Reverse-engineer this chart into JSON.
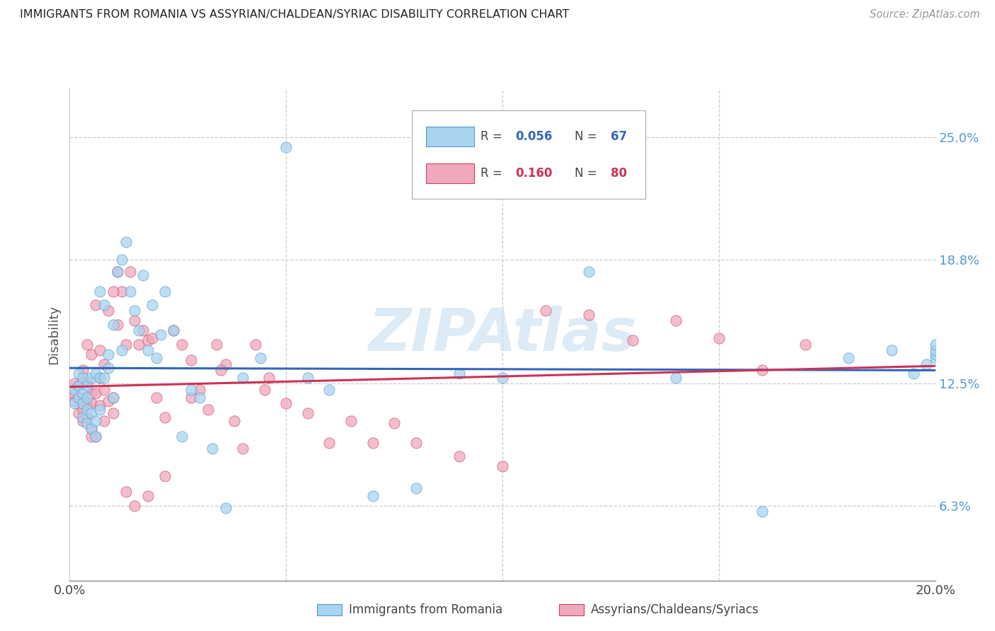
{
  "title": "IMMIGRANTS FROM ROMANIA VS ASSYRIAN/CHALDEAN/SYRIAC DISABILITY CORRELATION CHART",
  "source": "Source: ZipAtlas.com",
  "ylabel": "Disability",
  "ytick_labels": [
    "6.3%",
    "12.5%",
    "18.8%",
    "25.0%"
  ],
  "ytick_values": [
    0.063,
    0.125,
    0.188,
    0.25
  ],
  "xlim": [
    0.0,
    0.2
  ],
  "ylim": [
    0.025,
    0.275
  ],
  "color_blue": "#a8d4f0",
  "color_pink": "#f0a8bc",
  "color_blue_dark": "#5599cc",
  "color_pink_dark": "#cc4466",
  "color_line_blue": "#3366bb",
  "color_line_pink": "#cc3355",
  "watermark": "ZIPAtlas",
  "legend_label_blue": "Immigrants from Romania",
  "legend_label_pink": "Assyrians/Chaldeans/Syriacs",
  "blue_scatter_x": [
    0.001,
    0.001,
    0.002,
    0.002,
    0.002,
    0.003,
    0.003,
    0.003,
    0.003,
    0.004,
    0.004,
    0.004,
    0.004,
    0.005,
    0.005,
    0.005,
    0.006,
    0.006,
    0.006,
    0.007,
    0.007,
    0.007,
    0.008,
    0.008,
    0.009,
    0.009,
    0.01,
    0.01,
    0.011,
    0.012,
    0.012,
    0.013,
    0.014,
    0.015,
    0.016,
    0.017,
    0.018,
    0.019,
    0.02,
    0.021,
    0.022,
    0.024,
    0.026,
    0.028,
    0.03,
    0.033,
    0.036,
    0.04,
    0.044,
    0.05,
    0.055,
    0.06,
    0.07,
    0.08,
    0.09,
    0.1,
    0.12,
    0.14,
    0.16,
    0.18,
    0.19,
    0.195,
    0.198,
    0.2,
    0.2,
    0.2,
    0.2
  ],
  "blue_scatter_y": [
    0.115,
    0.122,
    0.118,
    0.124,
    0.13,
    0.108,
    0.115,
    0.12,
    0.128,
    0.105,
    0.112,
    0.118,
    0.124,
    0.102,
    0.11,
    0.128,
    0.098,
    0.106,
    0.13,
    0.112,
    0.172,
    0.128,
    0.128,
    0.165,
    0.133,
    0.14,
    0.118,
    0.155,
    0.182,
    0.142,
    0.188,
    0.197,
    0.172,
    0.162,
    0.152,
    0.18,
    0.142,
    0.165,
    0.138,
    0.15,
    0.172,
    0.152,
    0.098,
    0.122,
    0.118,
    0.092,
    0.062,
    0.128,
    0.138,
    0.245,
    0.128,
    0.122,
    0.068,
    0.072,
    0.13,
    0.128,
    0.182,
    0.128,
    0.06,
    0.138,
    0.142,
    0.13,
    0.135,
    0.138,
    0.14,
    0.142,
    0.145
  ],
  "pink_scatter_x": [
    0.001,
    0.001,
    0.001,
    0.002,
    0.002,
    0.002,
    0.003,
    0.003,
    0.003,
    0.003,
    0.004,
    0.004,
    0.004,
    0.005,
    0.005,
    0.005,
    0.006,
    0.006,
    0.007,
    0.007,
    0.008,
    0.008,
    0.009,
    0.01,
    0.01,
    0.011,
    0.012,
    0.013,
    0.014,
    0.015,
    0.016,
    0.017,
    0.018,
    0.019,
    0.02,
    0.022,
    0.024,
    0.026,
    0.028,
    0.03,
    0.032,
    0.034,
    0.036,
    0.038,
    0.04,
    0.043,
    0.046,
    0.05,
    0.055,
    0.06,
    0.065,
    0.07,
    0.075,
    0.08,
    0.09,
    0.1,
    0.11,
    0.12,
    0.13,
    0.14,
    0.15,
    0.16,
    0.17,
    0.003,
    0.004,
    0.005,
    0.005,
    0.006,
    0.007,
    0.008,
    0.009,
    0.01,
    0.011,
    0.013,
    0.015,
    0.018,
    0.022,
    0.028,
    0.035,
    0.045
  ],
  "pink_scatter_y": [
    0.116,
    0.12,
    0.125,
    0.11,
    0.118,
    0.124,
    0.106,
    0.112,
    0.118,
    0.126,
    0.108,
    0.114,
    0.126,
    0.102,
    0.115,
    0.12,
    0.098,
    0.12,
    0.128,
    0.114,
    0.106,
    0.122,
    0.116,
    0.11,
    0.118,
    0.182,
    0.172,
    0.145,
    0.182,
    0.157,
    0.145,
    0.152,
    0.147,
    0.148,
    0.118,
    0.108,
    0.152,
    0.145,
    0.118,
    0.122,
    0.112,
    0.145,
    0.135,
    0.106,
    0.092,
    0.145,
    0.128,
    0.115,
    0.11,
    0.095,
    0.106,
    0.095,
    0.105,
    0.095,
    0.088,
    0.083,
    0.162,
    0.16,
    0.147,
    0.157,
    0.148,
    0.132,
    0.145,
    0.132,
    0.145,
    0.14,
    0.098,
    0.165,
    0.142,
    0.135,
    0.162,
    0.172,
    0.155,
    0.07,
    0.063,
    0.068,
    0.078,
    0.137,
    0.132,
    0.122
  ]
}
